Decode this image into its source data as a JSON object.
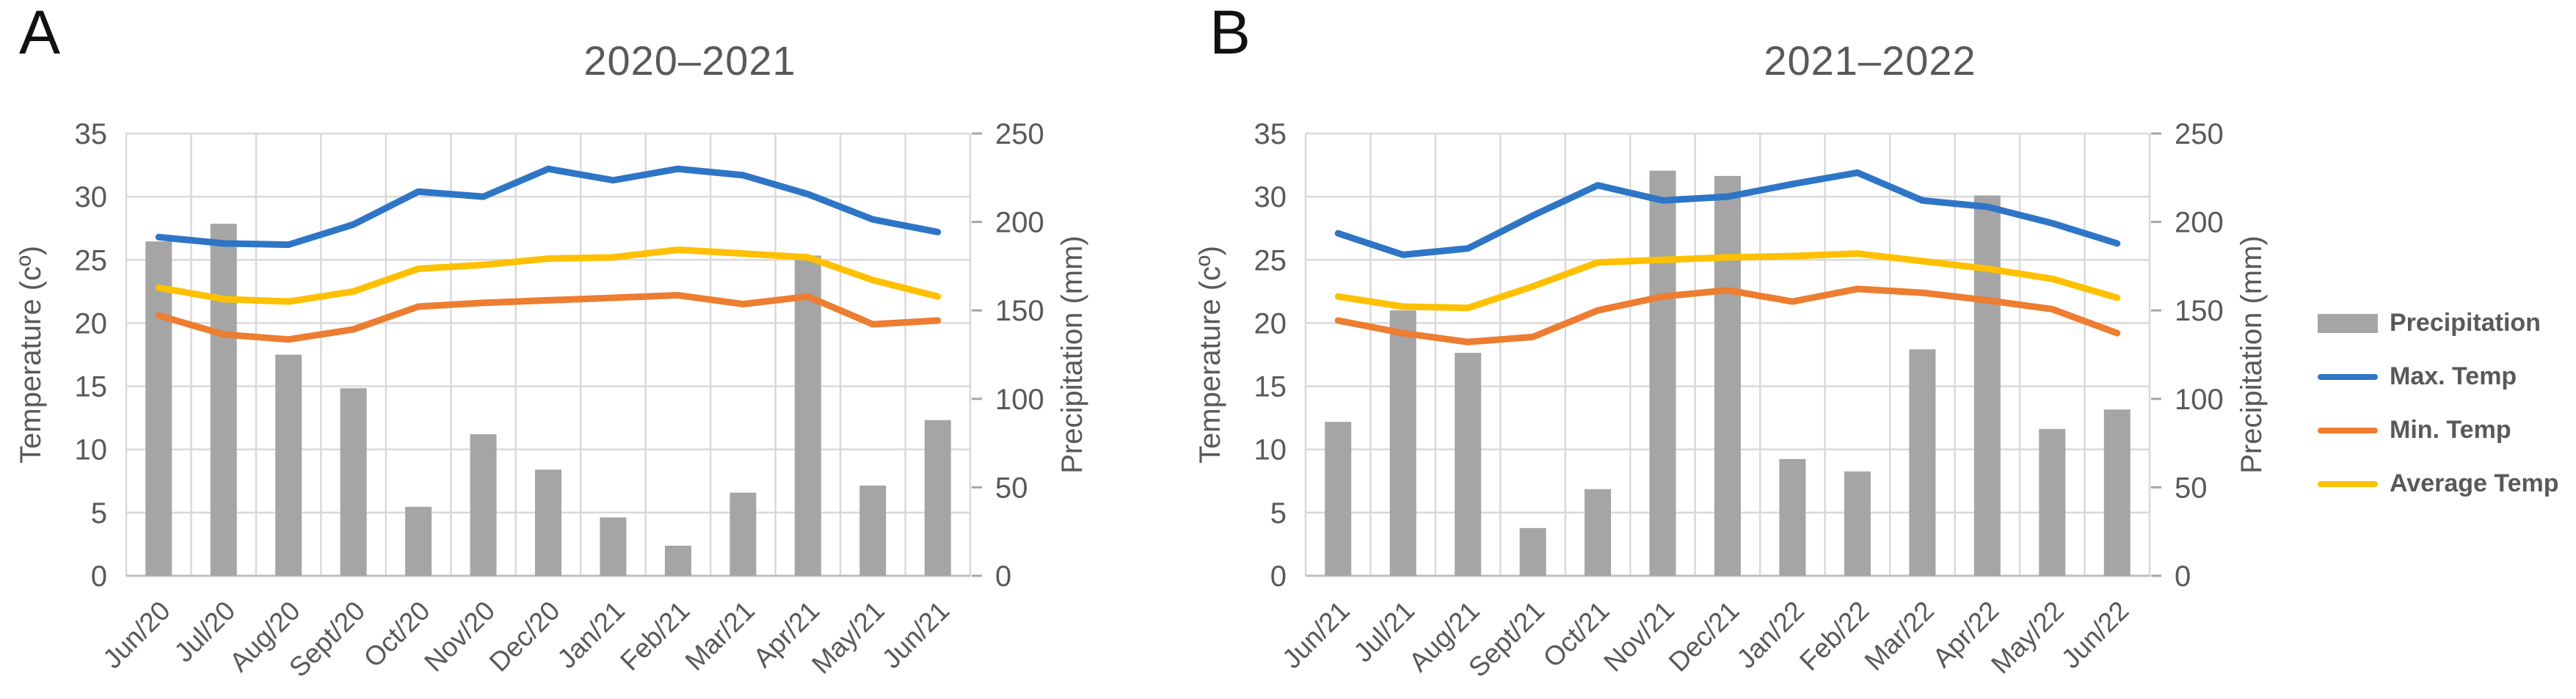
{
  "chart_data": [
    {
      "type": "bar+line",
      "panel_label": "A",
      "title": "2020–2021",
      "xlabel": "",
      "ylabel_left": "Temperature (cº)",
      "ylabel_right": "Precipitation (mm)",
      "ylim_left": [
        0,
        35
      ],
      "ylim_right": [
        0,
        250
      ],
      "yticks_left": [
        0,
        5,
        10,
        15,
        20,
        25,
        30,
        35
      ],
      "yticks_right": [
        0,
        50,
        100,
        150,
        200,
        250
      ],
      "grid": true,
      "categories": [
        "Jun/20",
        "Jul/20",
        "Aug/20",
        "Sept/20",
        "Oct/20",
        "Nov/20",
        "Dec/20",
        "Jan/21",
        "Feb/21",
        "Mar/21",
        "Apr/21",
        "May/21",
        "Jun/21"
      ],
      "series": [
        {
          "name": "Precipitation",
          "type": "bar",
          "axis": "right",
          "color": "#a5a5a5",
          "values": [
            189,
            199,
            125,
            106,
            39,
            80,
            60,
            33,
            17,
            47,
            181,
            51,
            88
          ]
        },
        {
          "name": "Max. Temp",
          "type": "line",
          "axis": "left",
          "color": "#2e75c6",
          "values": [
            26.8,
            26.3,
            26.2,
            27.8,
            30.4,
            30.0,
            32.2,
            31.3,
            32.2,
            31.7,
            30.2,
            28.2,
            27.2
          ]
        },
        {
          "name": "Min. Temp",
          "type": "line",
          "axis": "left",
          "color": "#ed7d31",
          "values": [
            20.6,
            19.1,
            18.7,
            19.5,
            21.3,
            21.6,
            21.8,
            22.0,
            22.2,
            21.5,
            22.1,
            19.9,
            20.2
          ]
        },
        {
          "name": "Average Temp",
          "type": "line",
          "axis": "left",
          "color": "#ffc000",
          "values": [
            22.8,
            21.9,
            21.7,
            22.5,
            24.3,
            24.6,
            25.1,
            25.2,
            25.8,
            25.5,
            25.2,
            23.4,
            22.1
          ]
        }
      ]
    },
    {
      "type": "bar+line",
      "panel_label": "B",
      "title": "2021–2022",
      "xlabel": "",
      "ylabel_left": "Temperature (cº)",
      "ylabel_right": "Precipitation (mm)",
      "ylim_left": [
        0,
        35
      ],
      "ylim_right": [
        0,
        250
      ],
      "yticks_left": [
        0,
        5,
        10,
        15,
        20,
        25,
        30,
        35
      ],
      "yticks_right": [
        0,
        50,
        100,
        150,
        200,
        250
      ],
      "grid": true,
      "categories": [
        "Jun/21",
        "Jul/21",
        "Aug/21",
        "Sept/21",
        "Oct/21",
        "Nov/21",
        "Dec/21",
        "Jan/22",
        "Feb/22",
        "Mar/22",
        "Apr/22",
        "May/22",
        "Jun/22"
      ],
      "series": [
        {
          "name": "Precipitation",
          "type": "bar",
          "axis": "right",
          "color": "#a5a5a5",
          "values": [
            87,
            150,
            126,
            27,
            49,
            229,
            226,
            66,
            59,
            128,
            215,
            83,
            94
          ]
        },
        {
          "name": "Max. Temp",
          "type": "line",
          "axis": "left",
          "color": "#2e75c6",
          "values": [
            27.1,
            25.4,
            25.9,
            28.5,
            30.9,
            29.7,
            30.0,
            31.0,
            31.9,
            29.7,
            29.2,
            27.9,
            26.3
          ]
        },
        {
          "name": "Min. Temp",
          "type": "line",
          "axis": "left",
          "color": "#ed7d31",
          "values": [
            20.2,
            19.2,
            18.5,
            18.9,
            21.0,
            22.1,
            22.6,
            21.7,
            22.7,
            22.4,
            21.8,
            21.1,
            19.2
          ]
        },
        {
          "name": "Average Temp",
          "type": "line",
          "axis": "left",
          "color": "#ffc000",
          "values": [
            22.1,
            21.3,
            21.2,
            22.9,
            24.8,
            25.0,
            25.2,
            25.3,
            25.5,
            24.9,
            24.3,
            23.5,
            22.0
          ]
        }
      ]
    }
  ],
  "legend": {
    "position": "right"
  }
}
